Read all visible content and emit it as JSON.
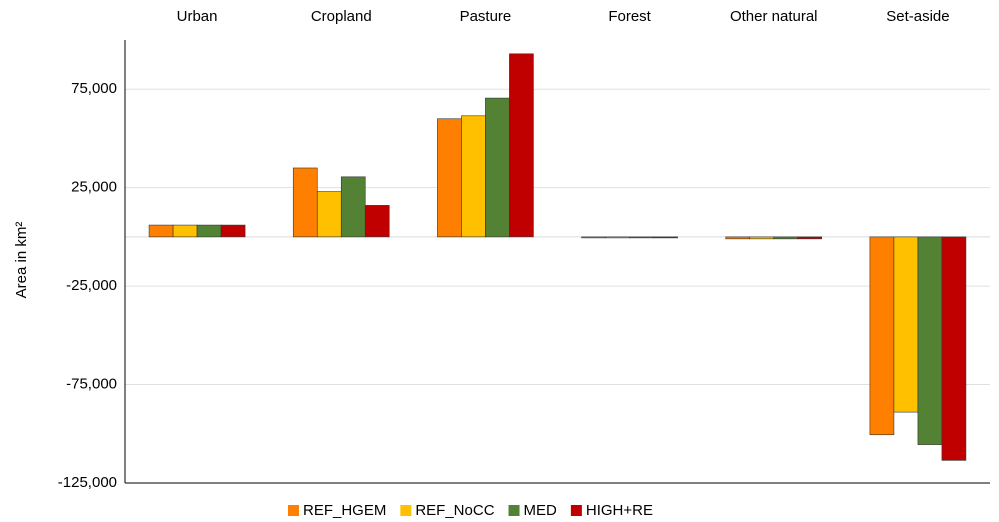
{
  "chart_data": {
    "type": "bar",
    "ylabel": "Area in km²",
    "categories": [
      "Urban",
      "Cropland",
      "Pasture",
      "Forest",
      "Other natural",
      "Set-aside"
    ],
    "series": [
      {
        "name": "REF_HGEM",
        "color": "#ff7f00",
        "values": [
          6000,
          35000,
          60000,
          -500,
          -1000,
          -100500
        ]
      },
      {
        "name": "REF_NoCC",
        "color": "#ffc000",
        "values": [
          6000,
          23000,
          61500,
          -500,
          -1000,
          -89000
        ]
      },
      {
        "name": "MED",
        "color": "#548235",
        "values": [
          6000,
          30500,
          70500,
          -500,
          -1000,
          -105500
        ]
      },
      {
        "name": "HIGH+RE",
        "color": "#c00000",
        "values": [
          6000,
          16000,
          93000,
          -500,
          -1000,
          -113500
        ]
      }
    ],
    "ylim": [
      -125000,
      100000
    ],
    "yticks": [
      {
        "value": -125000,
        "label": "-125,000"
      },
      {
        "value": -75000,
        "label": "-75,000"
      },
      {
        "value": -25000,
        "label": "-25,000"
      },
      {
        "value": 25000,
        "label": "25,000"
      },
      {
        "value": 75000,
        "label": "75,000"
      }
    ],
    "grid": true
  }
}
